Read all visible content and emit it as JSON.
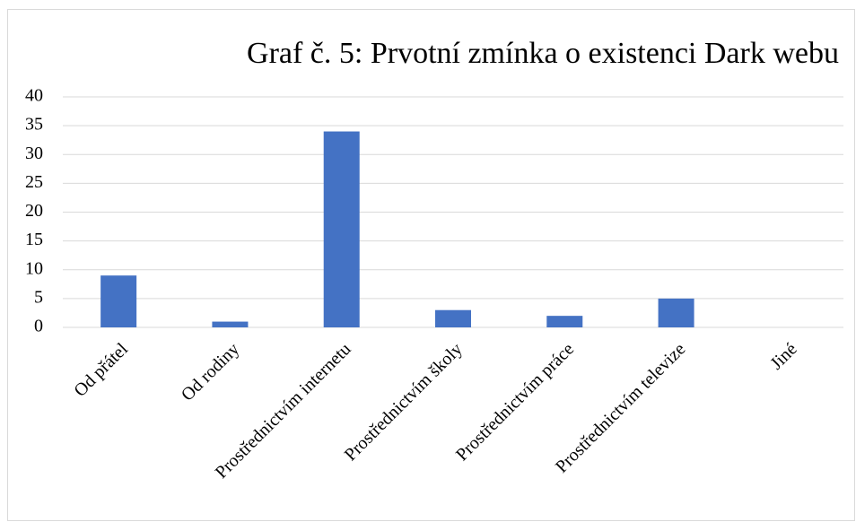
{
  "chart_data": {
    "type": "bar",
    "title": "Graf č. 5: Prvotní zmínka o existenci Dark webu",
    "categories": [
      "Od přátel",
      "Od rodiny",
      "Prostřednictvím internetu",
      "Prostřednictvím školy",
      "Prostřednictvím práce",
      "Prostřednictvím televize",
      "Jiné"
    ],
    "values": [
      9,
      1,
      34,
      3,
      2,
      5,
      0
    ],
    "color": "#4472c4",
    "ylim": [
      0,
      40
    ],
    "yticks": [
      0,
      5,
      10,
      15,
      20,
      25,
      30,
      35,
      40
    ],
    "grid": true
  }
}
